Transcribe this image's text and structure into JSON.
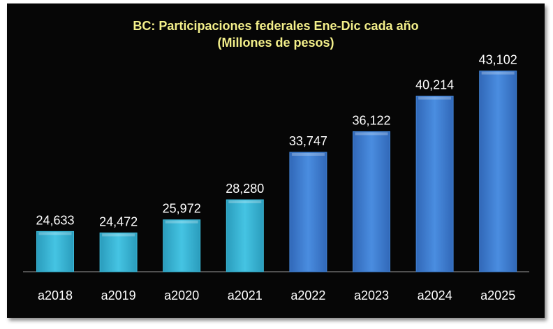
{
  "chart_data": {
    "type": "bar",
    "title": "BC: Participaciones federales Ene-Dic cada año",
    "subtitle": "(Millones de pesos)",
    "categories": [
      "a2018",
      "a2019",
      "a2020",
      "a2021",
      "a2022",
      "a2023",
      "a2024",
      "a2025"
    ],
    "values": [
      24633,
      24472,
      25972,
      28280,
      33747,
      36122,
      40214,
      43102
    ],
    "value_labels": [
      "24,633",
      "24,472",
      "25,972",
      "28,280",
      "33,747",
      "36,122",
      "40,214",
      "43,102"
    ],
    "bar_colors": [
      "#3cbad9",
      "#3cbad9",
      "#3cbad9",
      "#3cbad9",
      "#4283d4",
      "#4283d4",
      "#4283d4",
      "#4283d4"
    ],
    "xlabel": "",
    "ylabel": "",
    "ylim": [
      20000,
      45000
    ],
    "grid": false,
    "legend": "none"
  }
}
